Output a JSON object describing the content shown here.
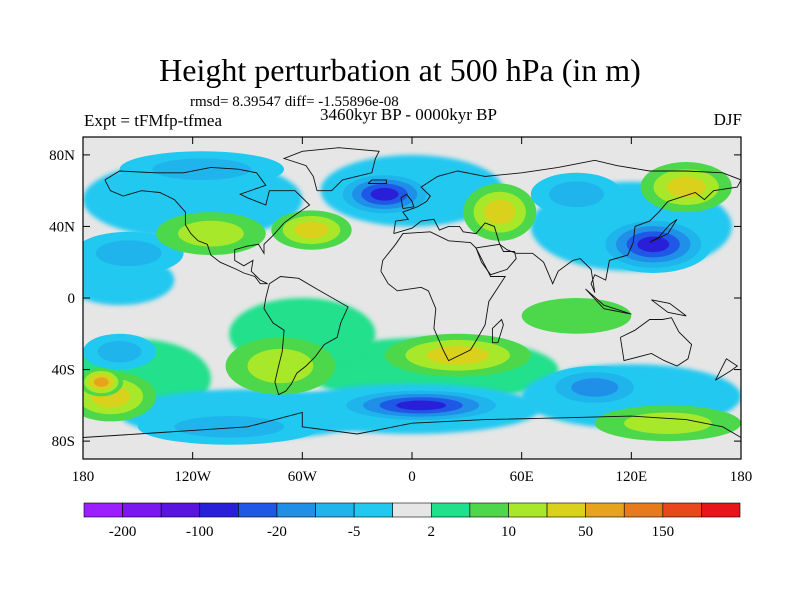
{
  "title": "Height perturbation at 500 hPa (in m)",
  "stats": "rmsd= 8.39547  diff= -1.55896e-08",
  "experiment": "Expt = tFMfp-tfmea",
  "period": "3460kyr BP - 0000kyr BP",
  "season": "DJF",
  "lat_labels": [
    "80N",
    "40N",
    "0",
    "40S",
    "80S"
  ],
  "lat_values": [
    80,
    40,
    0,
    -40,
    -80
  ],
  "lon_labels": [
    "180",
    "120W",
    "60W",
    "0",
    "60E",
    "120E",
    "180"
  ],
  "lon_values": [
    -180,
    -120,
    -60,
    0,
    60,
    120,
    180
  ],
  "colorbar": {
    "colors": [
      "#9c1fff",
      "#7b17ef",
      "#5a14e0",
      "#2a1fd8",
      "#1f58e6",
      "#1f8fe8",
      "#1fb4ec",
      "#21c8f0",
      "#e6e6e6",
      "#21e08c",
      "#4cd84a",
      "#a8e82a",
      "#d9d11c",
      "#e6a31c",
      "#e87a1c",
      "#e8481c",
      "#e8141c"
    ],
    "labels": [
      "-200",
      "-100",
      "-20",
      "-5",
      "2",
      "10",
      "50",
      "150"
    ],
    "label_positions": [
      1,
      3,
      5,
      7,
      9,
      11,
      13,
      15
    ]
  },
  "fields": [
    {
      "sign": "pos",
      "lon": -165,
      "lat": -55,
      "rx": 25,
      "ry": 14,
      "level": 12
    },
    {
      "sign": "pos",
      "lon": -170,
      "lat": -47,
      "rx": 12,
      "ry": 8,
      "level": 13
    },
    {
      "sign": "neg",
      "lon": -160,
      "lat": -30,
      "rx": 20,
      "ry": 10,
      "level": 6
    },
    {
      "sign": "neg",
      "lon": -155,
      "lat": 25,
      "rx": 30,
      "ry": 12,
      "level": 6
    },
    {
      "sign": "pos",
      "lon": -110,
      "lat": 36,
      "rx": 30,
      "ry": 12,
      "level": 11
    },
    {
      "sign": "pos",
      "lon": -55,
      "lat": 38,
      "rx": 22,
      "ry": 11,
      "level": 12
    },
    {
      "sign": "neg",
      "lon": -115,
      "lat": 72,
      "rx": 45,
      "ry": 10,
      "level": 6
    },
    {
      "sign": "neg",
      "lon": -15,
      "lat": 58,
      "rx": 28,
      "ry": 13,
      "level": 3
    },
    {
      "sign": "pos",
      "lon": 48,
      "lat": 48,
      "rx": 20,
      "ry": 16,
      "level": 12
    },
    {
      "sign": "neg",
      "lon": 90,
      "lat": 58,
      "rx": 25,
      "ry": 12,
      "level": 6
    },
    {
      "sign": "pos",
      "lon": 150,
      "lat": 62,
      "rx": 25,
      "ry": 14,
      "level": 12
    },
    {
      "sign": "neg",
      "lon": 132,
      "lat": 30,
      "rx": 32,
      "ry": 16,
      "level": 3
    },
    {
      "sign": "pos",
      "lon": -72,
      "lat": -38,
      "rx": 30,
      "ry": 16,
      "level": 11
    },
    {
      "sign": "pos",
      "lon": 25,
      "lat": -32,
      "rx": 40,
      "ry": 12,
      "level": 12
    },
    {
      "sign": "neg",
      "lon": 5,
      "lat": -60,
      "rx": 50,
      "ry": 10,
      "level": 3
    },
    {
      "sign": "neg",
      "lon": 100,
      "lat": -50,
      "rx": 30,
      "ry": 12,
      "level": 5
    },
    {
      "sign": "pos",
      "lon": 140,
      "lat": -70,
      "rx": 40,
      "ry": 10,
      "level": 11
    },
    {
      "sign": "neg",
      "lon": -100,
      "lat": -72,
      "rx": 50,
      "ry": 10,
      "level": 6
    },
    {
      "sign": "pos",
      "lon": 90,
      "lat": -10,
      "rx": 30,
      "ry": 10,
      "level": 10
    }
  ]
}
